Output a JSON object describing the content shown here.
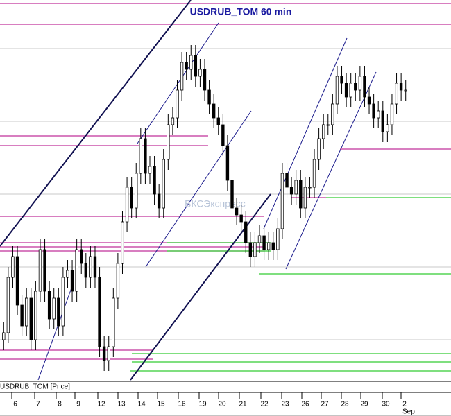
{
  "chart_data": {
    "type": "candlestick",
    "title": "USDRUB_TOM 60 min",
    "watermark": "БКСЭкспресс",
    "legend": "USDRUB_TOM [Price]",
    "categories": [
      "6",
      "7",
      "8",
      "9",
      "12",
      "13",
      "14",
      "15",
      "16",
      "19",
      "20",
      "21",
      "22",
      "23",
      "26",
      "27",
      "28",
      "29",
      "30",
      "2"
    ],
    "month_label": "Sep",
    "ylim": [
      0,
      550
    ],
    "open": [
      60,
      70,
      150,
      180,
      110,
      80,
      120,
      60,
      130,
      190,
      130,
      90,
      120,
      80,
      150,
      160,
      130,
      190,
      170,
      150,
      180,
      150,
      50,
      30,
      50,
      120,
      170,
      230,
      280,
      250,
      300,
      350,
      300,
      310,
      270,
      250,
      320,
      370,
      380,
      420,
      460,
      450,
      470,
      440,
      450,
      420,
      400,
      380,
      370,
      340,
      290,
      250,
      240,
      230,
      200,
      180,
      200,
      210,
      190,
      200,
      190,
      220,
      300,
      280,
      270,
      290,
      250,
      280,
      280,
      320,
      350,
      370,
      370,
      400,
      440,
      430,
      410,
      430,
      420,
      440,
      410,
      400,
      380,
      390,
      360,
      370,
      400,
      430,
      420
    ],
    "high": [
      85,
      165,
      195,
      195,
      125,
      135,
      135,
      145,
      205,
      205,
      145,
      135,
      135,
      165,
      175,
      175,
      205,
      205,
      185,
      195,
      195,
      165,
      65,
      65,
      135,
      185,
      245,
      295,
      295,
      315,
      365,
      365,
      325,
      325,
      285,
      335,
      385,
      395,
      435,
      475,
      475,
      485,
      485,
      465,
      465,
      435,
      415,
      395,
      385,
      355,
      305,
      265,
      255,
      245,
      215,
      215,
      225,
      225,
      215,
      215,
      235,
      315,
      315,
      295,
      305,
      305,
      295,
      295,
      335,
      365,
      385,
      385,
      415,
      455,
      455,
      445,
      445,
      445,
      455,
      455,
      425,
      415,
      405,
      405,
      385,
      415,
      445,
      445,
      435
    ],
    "low": [
      45,
      55,
      135,
      95,
      65,
      65,
      45,
      45,
      115,
      115,
      75,
      75,
      65,
      65,
      135,
      115,
      115,
      155,
      135,
      135,
      135,
      35,
      15,
      15,
      35,
      105,
      155,
      215,
      235,
      235,
      285,
      285,
      285,
      255,
      235,
      235,
      305,
      355,
      365,
      405,
      435,
      435,
      425,
      425,
      405,
      385,
      365,
      355,
      325,
      275,
      235,
      225,
      215,
      185,
      165,
      165,
      185,
      175,
      175,
      175,
      175,
      205,
      265,
      255,
      255,
      235,
      235,
      265,
      265,
      305,
      335,
      355,
      355,
      385,
      415,
      395,
      395,
      405,
      405,
      395,
      385,
      365,
      365,
      345,
      345,
      355,
      385,
      405,
      405
    ],
    "close": [
      70,
      150,
      180,
      110,
      80,
      120,
      60,
      130,
      190,
      130,
      90,
      120,
      80,
      150,
      160,
      130,
      190,
      170,
      150,
      180,
      150,
      50,
      30,
      50,
      120,
      170,
      230,
      280,
      250,
      300,
      350,
      300,
      310,
      270,
      250,
      320,
      370,
      380,
      420,
      460,
      450,
      470,
      440,
      450,
      420,
      400,
      380,
      370,
      340,
      290,
      250,
      240,
      230,
      200,
      180,
      200,
      210,
      190,
      200,
      190,
      220,
      300,
      280,
      270,
      290,
      250,
      280,
      280,
      320,
      350,
      370,
      370,
      400,
      440,
      430,
      410,
      430,
      420,
      440,
      410,
      400,
      380,
      390,
      360,
      370,
      400,
      430,
      420,
      420
    ]
  }
}
